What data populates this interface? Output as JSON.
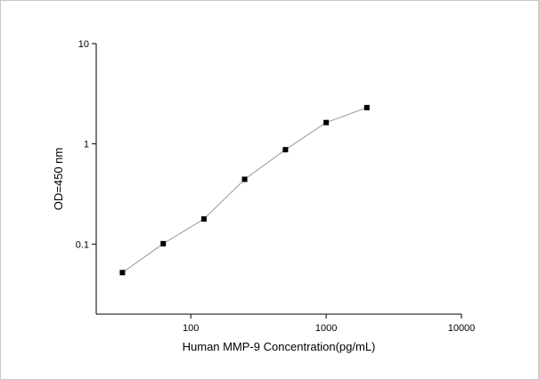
{
  "chart_data": {
    "type": "scatter",
    "title": "",
    "xlabel": "Human MMP-9  Concentration(pg/mL)",
    "ylabel": "OD=450 nm",
    "x_scale": "log",
    "y_scale": "log",
    "xlim": [
      20,
      10000
    ],
    "ylim": [
      0.02,
      10
    ],
    "x_ticks": [
      100,
      1000,
      10000
    ],
    "x_tick_labels": [
      "100",
      "1000",
      "10000"
    ],
    "y_ticks": [
      0.1,
      1,
      10
    ],
    "y_tick_labels": [
      "0.1",
      "1",
      "10"
    ],
    "grid": false,
    "legend": "none",
    "series": [
      {
        "x": [
          31.25,
          62.5,
          125,
          250,
          500,
          1000,
          2000
        ],
        "y": [
          0.052,
          0.101,
          0.178,
          0.443,
          0.875,
          1.63,
          2.3
        ],
        "marker": "square",
        "line": "connected"
      }
    ],
    "colors": {
      "line": "#9a9a9a",
      "marker": "#000000",
      "frame": "#c8c8c8"
    }
  }
}
